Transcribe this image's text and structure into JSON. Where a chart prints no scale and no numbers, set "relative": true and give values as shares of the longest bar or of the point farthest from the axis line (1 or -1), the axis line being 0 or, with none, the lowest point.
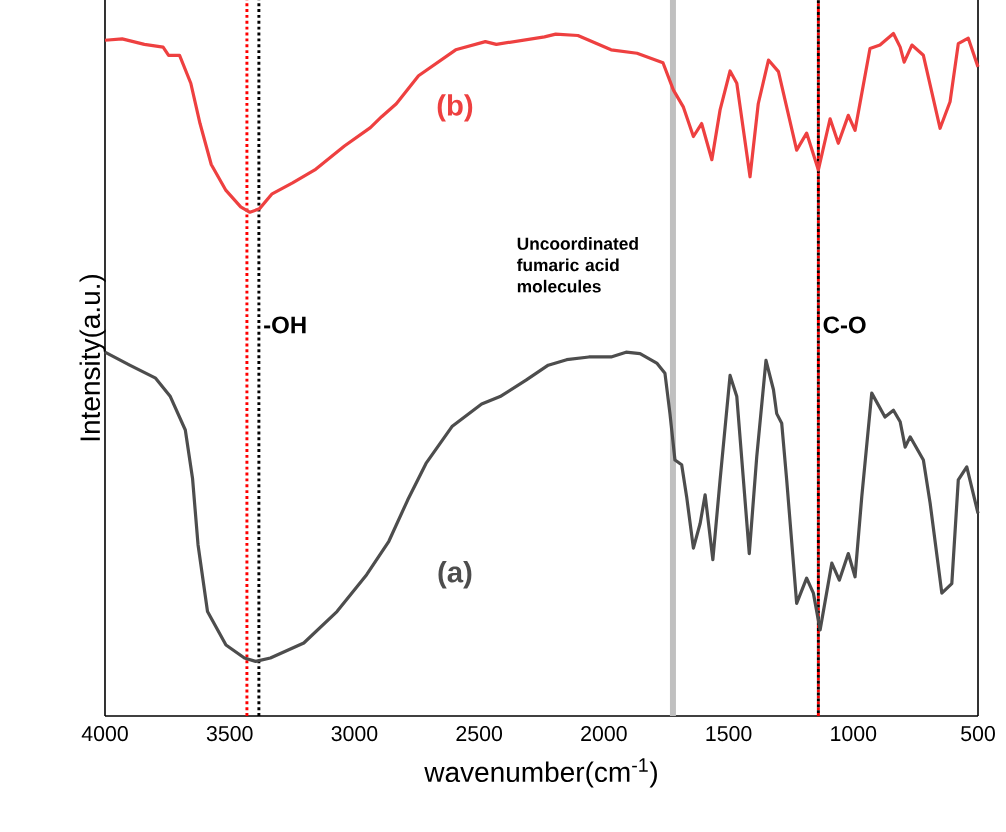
{
  "chart_data": {
    "type": "line",
    "relative": true,
    "xlabel": "wavenumber(cm$^{-1}$)",
    "ylabel": "Intensity(a.u.)",
    "xlim": [
      4000,
      500
    ],
    "xticks": [
      4000,
      3500,
      3000,
      2500,
      2000,
      1500,
      1000,
      500
    ],
    "line_style": "solid",
    "marker": "none",
    "series": [
      {
        "name": "(a)",
        "color": "#4d4d4d",
        "x": [
          4000,
          3901,
          3797,
          3738,
          3678,
          3649,
          3627,
          3589,
          3515,
          3441,
          3396,
          3337,
          3203,
          3070,
          2951,
          2862,
          2787,
          2713,
          2609,
          2490,
          2416,
          2312,
          2223,
          2149,
          2060,
          1971,
          1911,
          1855,
          1788,
          1755,
          1735,
          1715,
          1688,
          1668,
          1641,
          1614,
          1594,
          1563,
          1534,
          1494,
          1467,
          1417,
          1387,
          1350,
          1320,
          1307,
          1287,
          1267,
          1227,
          1187,
          1160,
          1133,
          1086,
          1056,
          1020,
          993,
          966,
          926,
          873,
          839,
          812,
          792,
          772,
          719,
          692,
          645,
          605,
          579,
          545,
          500
        ],
        "values": [
          0.533,
          0.514,
          0.495,
          0.468,
          0.419,
          0.348,
          0.251,
          0.153,
          0.104,
          0.085,
          0.08,
          0.085,
          0.107,
          0.153,
          0.207,
          0.256,
          0.316,
          0.37,
          0.424,
          0.457,
          0.468,
          0.492,
          0.514,
          0.522,
          0.526,
          0.526,
          0.533,
          0.531,
          0.517,
          0.502,
          0.443,
          0.375,
          0.368,
          0.321,
          0.246,
          0.282,
          0.324,
          0.229,
          0.346,
          0.499,
          0.468,
          0.238,
          0.38,
          0.521,
          0.478,
          0.443,
          0.429,
          0.346,
          0.165,
          0.202,
          0.18,
          0.126,
          0.224,
          0.199,
          0.238,
          0.204,
          0.321,
          0.473,
          0.438,
          0.448,
          0.431,
          0.394,
          0.409,
          0.375,
          0.312,
          0.18,
          0.194,
          0.346,
          0.365,
          0.297
        ]
      },
      {
        "name": "(b)",
        "color": "#ee4040",
        "x": [
          4000,
          3931,
          3842,
          3767,
          3745,
          3701,
          3656,
          3619,
          3574,
          3515,
          3456,
          3419,
          3381,
          3330,
          3248,
          3159,
          3040,
          2936,
          2891,
          2832,
          2743,
          2594,
          2475,
          2431,
          2238,
          2193,
          2104,
          1971,
          1867,
          1763,
          1721,
          1681,
          1641,
          1608,
          1567,
          1534,
          1494,
          1467,
          1414,
          1381,
          1340,
          1300,
          1227,
          1187,
          1140,
          1093,
          1060,
          1020,
          993,
          933,
          893,
          839,
          812,
          796,
          765,
          719,
          652,
          612,
          579,
          539,
          500
        ],
        "values": [
          0.99,
          0.992,
          0.984,
          0.98,
          0.968,
          0.968,
          0.927,
          0.868,
          0.808,
          0.77,
          0.746,
          0.738,
          0.743,
          0.765,
          0.781,
          0.8,
          0.835,
          0.862,
          0.878,
          0.897,
          0.938,
          0.976,
          0.988,
          0.984,
          0.995,
          0.999,
          0.997,
          0.976,
          0.971,
          0.957,
          0.917,
          0.892,
          0.849,
          0.868,
          0.815,
          0.888,
          0.945,
          0.927,
          0.79,
          0.897,
          0.961,
          0.944,
          0.829,
          0.854,
          0.8,
          0.875,
          0.839,
          0.88,
          0.858,
          0.978,
          0.983,
          1.0,
          0.98,
          0.958,
          0.983,
          0.968,
          0.861,
          0.9,
          0.985,
          0.993,
          0.951
        ]
      }
    ],
    "ref_lines": [
      {
        "axis": "x",
        "value": 3431,
        "color": "#ff0000",
        "line_style": "dotted"
      },
      {
        "axis": "x",
        "value": 3383,
        "color": "#000000",
        "line_style": "dotted",
        "label": "-OH"
      },
      {
        "axis": "x",
        "value": 1723,
        "color": "#c0c0c0",
        "line_style": "solid",
        "label": "Uncoordinated fumaric acid molecules"
      },
      {
        "axis": "x",
        "value": 1140,
        "color": "#ff0000",
        "line_style": "dotted"
      },
      {
        "axis": "x",
        "value": 1140,
        "color": "#000000",
        "line_style": "dotted",
        "label": "C-O"
      }
    ]
  }
}
